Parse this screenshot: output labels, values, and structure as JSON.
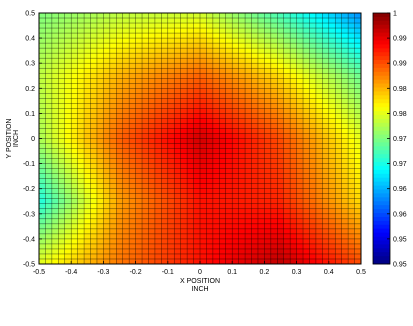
{
  "chart_data": {
    "type": "heatmap",
    "title": "",
    "xlabel": "X POSITION",
    "xunit": "INCH",
    "ylabel": "Y POSITION",
    "yunit": "INCH",
    "xlim": [
      -0.5,
      0.5
    ],
    "ylim": [
      -0.5,
      0.5
    ],
    "x_ticks": [
      "-0.5",
      "-0.4",
      "-0.3",
      "-0.2",
      "-0.1",
      "0",
      "0.1",
      "0.2",
      "0.3",
      "0.4",
      "0.5"
    ],
    "y_ticks": [
      "0.5",
      "0.4",
      "0.3",
      "0.2",
      "0.1",
      "0",
      "-0.1",
      "-0.2",
      "-0.3",
      "-0.4",
      "-0.5"
    ],
    "grid": true,
    "grid_cells": 50,
    "colormap": "jet",
    "colorbar": {
      "range": [
        0.95,
        1.0
      ],
      "ticks": [
        "1",
        "0.99",
        "0.99",
        "0.98",
        "0.98",
        "0.97",
        "0.97",
        "0.96",
        "0.96",
        "0.95",
        "0.95"
      ]
    },
    "z_samples": {
      "x": [
        -0.5,
        -0.25,
        0.0,
        0.25,
        0.5
      ],
      "y": [
        0.5,
        0.25,
        0.0,
        -0.25,
        -0.5
      ],
      "z": [
        [
          0.975,
          0.978,
          0.979,
          0.972,
          0.963
        ],
        [
          0.978,
          0.985,
          0.989,
          0.983,
          0.974
        ],
        [
          0.977,
          0.989,
          0.996,
          0.99,
          0.98
        ],
        [
          0.97,
          0.986,
          0.993,
          0.992,
          0.983
        ],
        [
          0.98,
          0.988,
          0.993,
          0.997,
          0.99
        ]
      ]
    }
  }
}
